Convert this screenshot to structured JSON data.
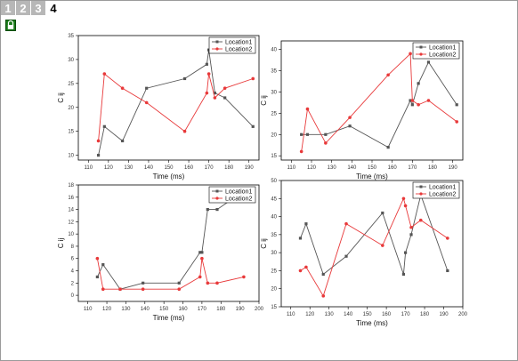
{
  "window": {
    "tabs": [
      {
        "label": "1",
        "active": false
      },
      {
        "label": "2",
        "active": false
      },
      {
        "label": "3",
        "active": false
      },
      {
        "label": "4",
        "active": true
      }
    ],
    "lock_icon": "lock-icon"
  },
  "colors": {
    "location1": "#555555",
    "location2": "#e8393a",
    "axis": "#000000"
  },
  "chart_data": [
    {
      "type": "line",
      "xlabel": "Time (ms)",
      "ylabel": "C ij",
      "xlim": [
        105,
        195
      ],
      "ylim": [
        9,
        35
      ],
      "xticks": [
        110,
        120,
        130,
        140,
        150,
        160,
        170,
        180,
        190
      ],
      "yticks": [
        10,
        15,
        20,
        25,
        30,
        35
      ],
      "legend": "top-right",
      "series": [
        {
          "name": "Location1",
          "x": [
            115,
            118,
            127,
            139,
            158,
            169,
            170,
            173,
            178,
            192
          ],
          "y": [
            10,
            16,
            13,
            24,
            26,
            29,
            32,
            23,
            22,
            16
          ]
        },
        {
          "name": "Location2",
          "x": [
            115,
            118,
            127,
            139,
            158,
            169,
            170,
            173,
            178,
            192
          ],
          "y": [
            13,
            27,
            24,
            21,
            15,
            23,
            27,
            22,
            24,
            26
          ]
        }
      ]
    },
    {
      "type": "line",
      "xlabel": "Time (ms)",
      "ylabel": "C ij",
      "xlim": [
        105,
        195
      ],
      "ylim": [
        14,
        42
      ],
      "xticks": [
        110,
        120,
        130,
        140,
        150,
        160,
        170,
        180,
        190
      ],
      "yticks": [
        15,
        20,
        25,
        30,
        35,
        40
      ],
      "legend": "top-right",
      "series": [
        {
          "name": "Location1",
          "x": [
            115,
            118,
            127,
            139,
            158,
            169,
            170,
            173,
            178,
            192
          ],
          "y": [
            20,
            20,
            20,
            22,
            17,
            28,
            27,
            32,
            37,
            27
          ]
        },
        {
          "name": "Location2",
          "x": [
            115,
            118,
            127,
            139,
            158,
            169,
            170,
            173,
            178,
            192
          ],
          "y": [
            16,
            26,
            18,
            24,
            34,
            39,
            28,
            27,
            28,
            23
          ]
        }
      ]
    },
    {
      "type": "line",
      "xlabel": "Time (ms)",
      "ylabel": "C ij",
      "xlim": [
        105,
        200
      ],
      "ylim": [
        -1,
        18
      ],
      "xticks": [
        110,
        120,
        130,
        140,
        150,
        160,
        170,
        180,
        190,
        200
      ],
      "yticks": [
        0,
        2,
        4,
        6,
        8,
        10,
        12,
        14,
        16,
        18
      ],
      "legend": "top-right",
      "series": [
        {
          "name": "Location1",
          "x": [
            115,
            118,
            127,
            139,
            158,
            169,
            170,
            173,
            178,
            192
          ],
          "y": [
            3,
            5,
            1,
            2,
            2,
            7,
            7,
            14,
            14,
            17
          ]
        },
        {
          "name": "Location2",
          "x": [
            115,
            118,
            127,
            139,
            158,
            169,
            170,
            173,
            178,
            192
          ],
          "y": [
            6,
            1,
            1,
            1,
            1,
            3,
            6,
            2,
            2,
            3
          ]
        }
      ]
    },
    {
      "type": "line",
      "xlabel": "Time (ms)",
      "ylabel": "C ij",
      "xlim": [
        105,
        200
      ],
      "ylim": [
        15,
        50
      ],
      "xticks": [
        110,
        120,
        130,
        140,
        150,
        160,
        170,
        180,
        190,
        200
      ],
      "yticks": [
        15,
        20,
        25,
        30,
        35,
        40,
        45,
        50
      ],
      "legend": "top-right",
      "series": [
        {
          "name": "Location1",
          "x": [
            115,
            118,
            127,
            139,
            158,
            169,
            170,
            173,
            178,
            192
          ],
          "y": [
            34,
            38,
            24,
            29,
            41,
            24,
            30,
            35,
            46,
            25
          ]
        },
        {
          "name": "Location2",
          "x": [
            115,
            118,
            127,
            139,
            158,
            169,
            170,
            173,
            178,
            192
          ],
          "y": [
            25,
            26,
            18,
            38,
            32,
            45,
            43,
            37,
            39,
            34
          ]
        }
      ]
    }
  ]
}
